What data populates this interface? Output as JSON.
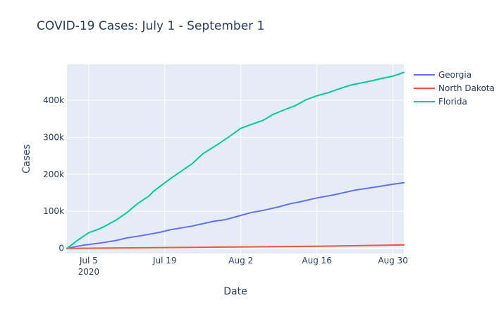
{
  "chart_data": {
    "type": "line",
    "title": "COVID-19 Cases: July 1 - September 1",
    "xlabel": "Date",
    "ylabel": "Cases",
    "x_ticks": [
      {
        "date": "2020-07-05",
        "label": "Jul 5",
        "sublabel": "2020"
      },
      {
        "date": "2020-07-19",
        "label": "Jul 19",
        "sublabel": ""
      },
      {
        "date": "2020-08-02",
        "label": "Aug 2",
        "sublabel": ""
      },
      {
        "date": "2020-08-16",
        "label": "Aug 16",
        "sublabel": ""
      },
      {
        "date": "2020-08-30",
        "label": "Aug 30",
        "sublabel": ""
      }
    ],
    "y_ticks": [
      {
        "value": 0,
        "label": "0"
      },
      {
        "value": 100000,
        "label": "100k"
      },
      {
        "value": 200000,
        "label": "200k"
      },
      {
        "value": 300000,
        "label": "300k"
      },
      {
        "value": 400000,
        "label": "400k"
      }
    ],
    "xlim": [
      "2020-07-01",
      "2020-09-01"
    ],
    "ylim": [
      -14000,
      497000
    ],
    "grid": true,
    "legend_position": "top-right",
    "series": [
      {
        "name": "Georgia",
        "color": "#636efa",
        "points": [
          [
            "2020-07-01",
            0
          ],
          [
            "2020-07-04",
            8500
          ],
          [
            "2020-07-07",
            14000
          ],
          [
            "2020-07-10",
            21000
          ],
          [
            "2020-07-12",
            28000
          ],
          [
            "2020-07-15",
            35000
          ],
          [
            "2020-07-18",
            43000
          ],
          [
            "2020-07-20",
            50000
          ],
          [
            "2020-07-24",
            60000
          ],
          [
            "2020-07-28",
            73000
          ],
          [
            "2020-07-30",
            77000
          ],
          [
            "2020-08-01",
            85000
          ],
          [
            "2020-08-04",
            97000
          ],
          [
            "2020-08-06",
            102000
          ],
          [
            "2020-08-09",
            112000
          ],
          [
            "2020-08-11",
            120000
          ],
          [
            "2020-08-13",
            126000
          ],
          [
            "2020-08-16",
            136000
          ],
          [
            "2020-08-19",
            144000
          ],
          [
            "2020-08-23",
            157000
          ],
          [
            "2020-08-27",
            166000
          ],
          [
            "2020-08-30",
            173000
          ],
          [
            "2020-09-01",
            177000
          ]
        ]
      },
      {
        "name": "North Dakota",
        "color": "#ef553b",
        "points": [
          [
            "2020-07-01",
            0
          ],
          [
            "2020-07-15",
            1500
          ],
          [
            "2020-08-01",
            3500
          ],
          [
            "2020-08-16",
            5500
          ],
          [
            "2020-09-01",
            9000
          ]
        ]
      },
      {
        "name": "Florida",
        "color": "#00cc96",
        "points": [
          [
            "2020-07-01",
            0
          ],
          [
            "2020-07-03",
            22000
          ],
          [
            "2020-07-05",
            42000
          ],
          [
            "2020-07-07",
            53000
          ],
          [
            "2020-07-08",
            60000
          ],
          [
            "2020-07-10",
            76000
          ],
          [
            "2020-07-12",
            96000
          ],
          [
            "2020-07-14",
            121000
          ],
          [
            "2020-07-16",
            140000
          ],
          [
            "2020-07-17",
            155000
          ],
          [
            "2020-07-19",
            177000
          ],
          [
            "2020-07-21",
            198000
          ],
          [
            "2020-07-24",
            228000
          ],
          [
            "2020-07-26",
            255000
          ],
          [
            "2020-07-29",
            283000
          ],
          [
            "2020-07-31",
            303000
          ],
          [
            "2020-08-02",
            324000
          ],
          [
            "2020-08-04",
            335000
          ],
          [
            "2020-08-06",
            345000
          ],
          [
            "2020-08-08",
            362000
          ],
          [
            "2020-08-10",
            374000
          ],
          [
            "2020-08-12",
            385000
          ],
          [
            "2020-08-14",
            401000
          ],
          [
            "2020-08-16",
            412000
          ],
          [
            "2020-08-18",
            420000
          ],
          [
            "2020-08-20",
            430000
          ],
          [
            "2020-08-22",
            440000
          ],
          [
            "2020-08-24",
            446000
          ],
          [
            "2020-08-26",
            452000
          ],
          [
            "2020-08-28",
            459000
          ],
          [
            "2020-08-30",
            465000
          ],
          [
            "2020-09-01",
            475000
          ]
        ]
      }
    ]
  }
}
